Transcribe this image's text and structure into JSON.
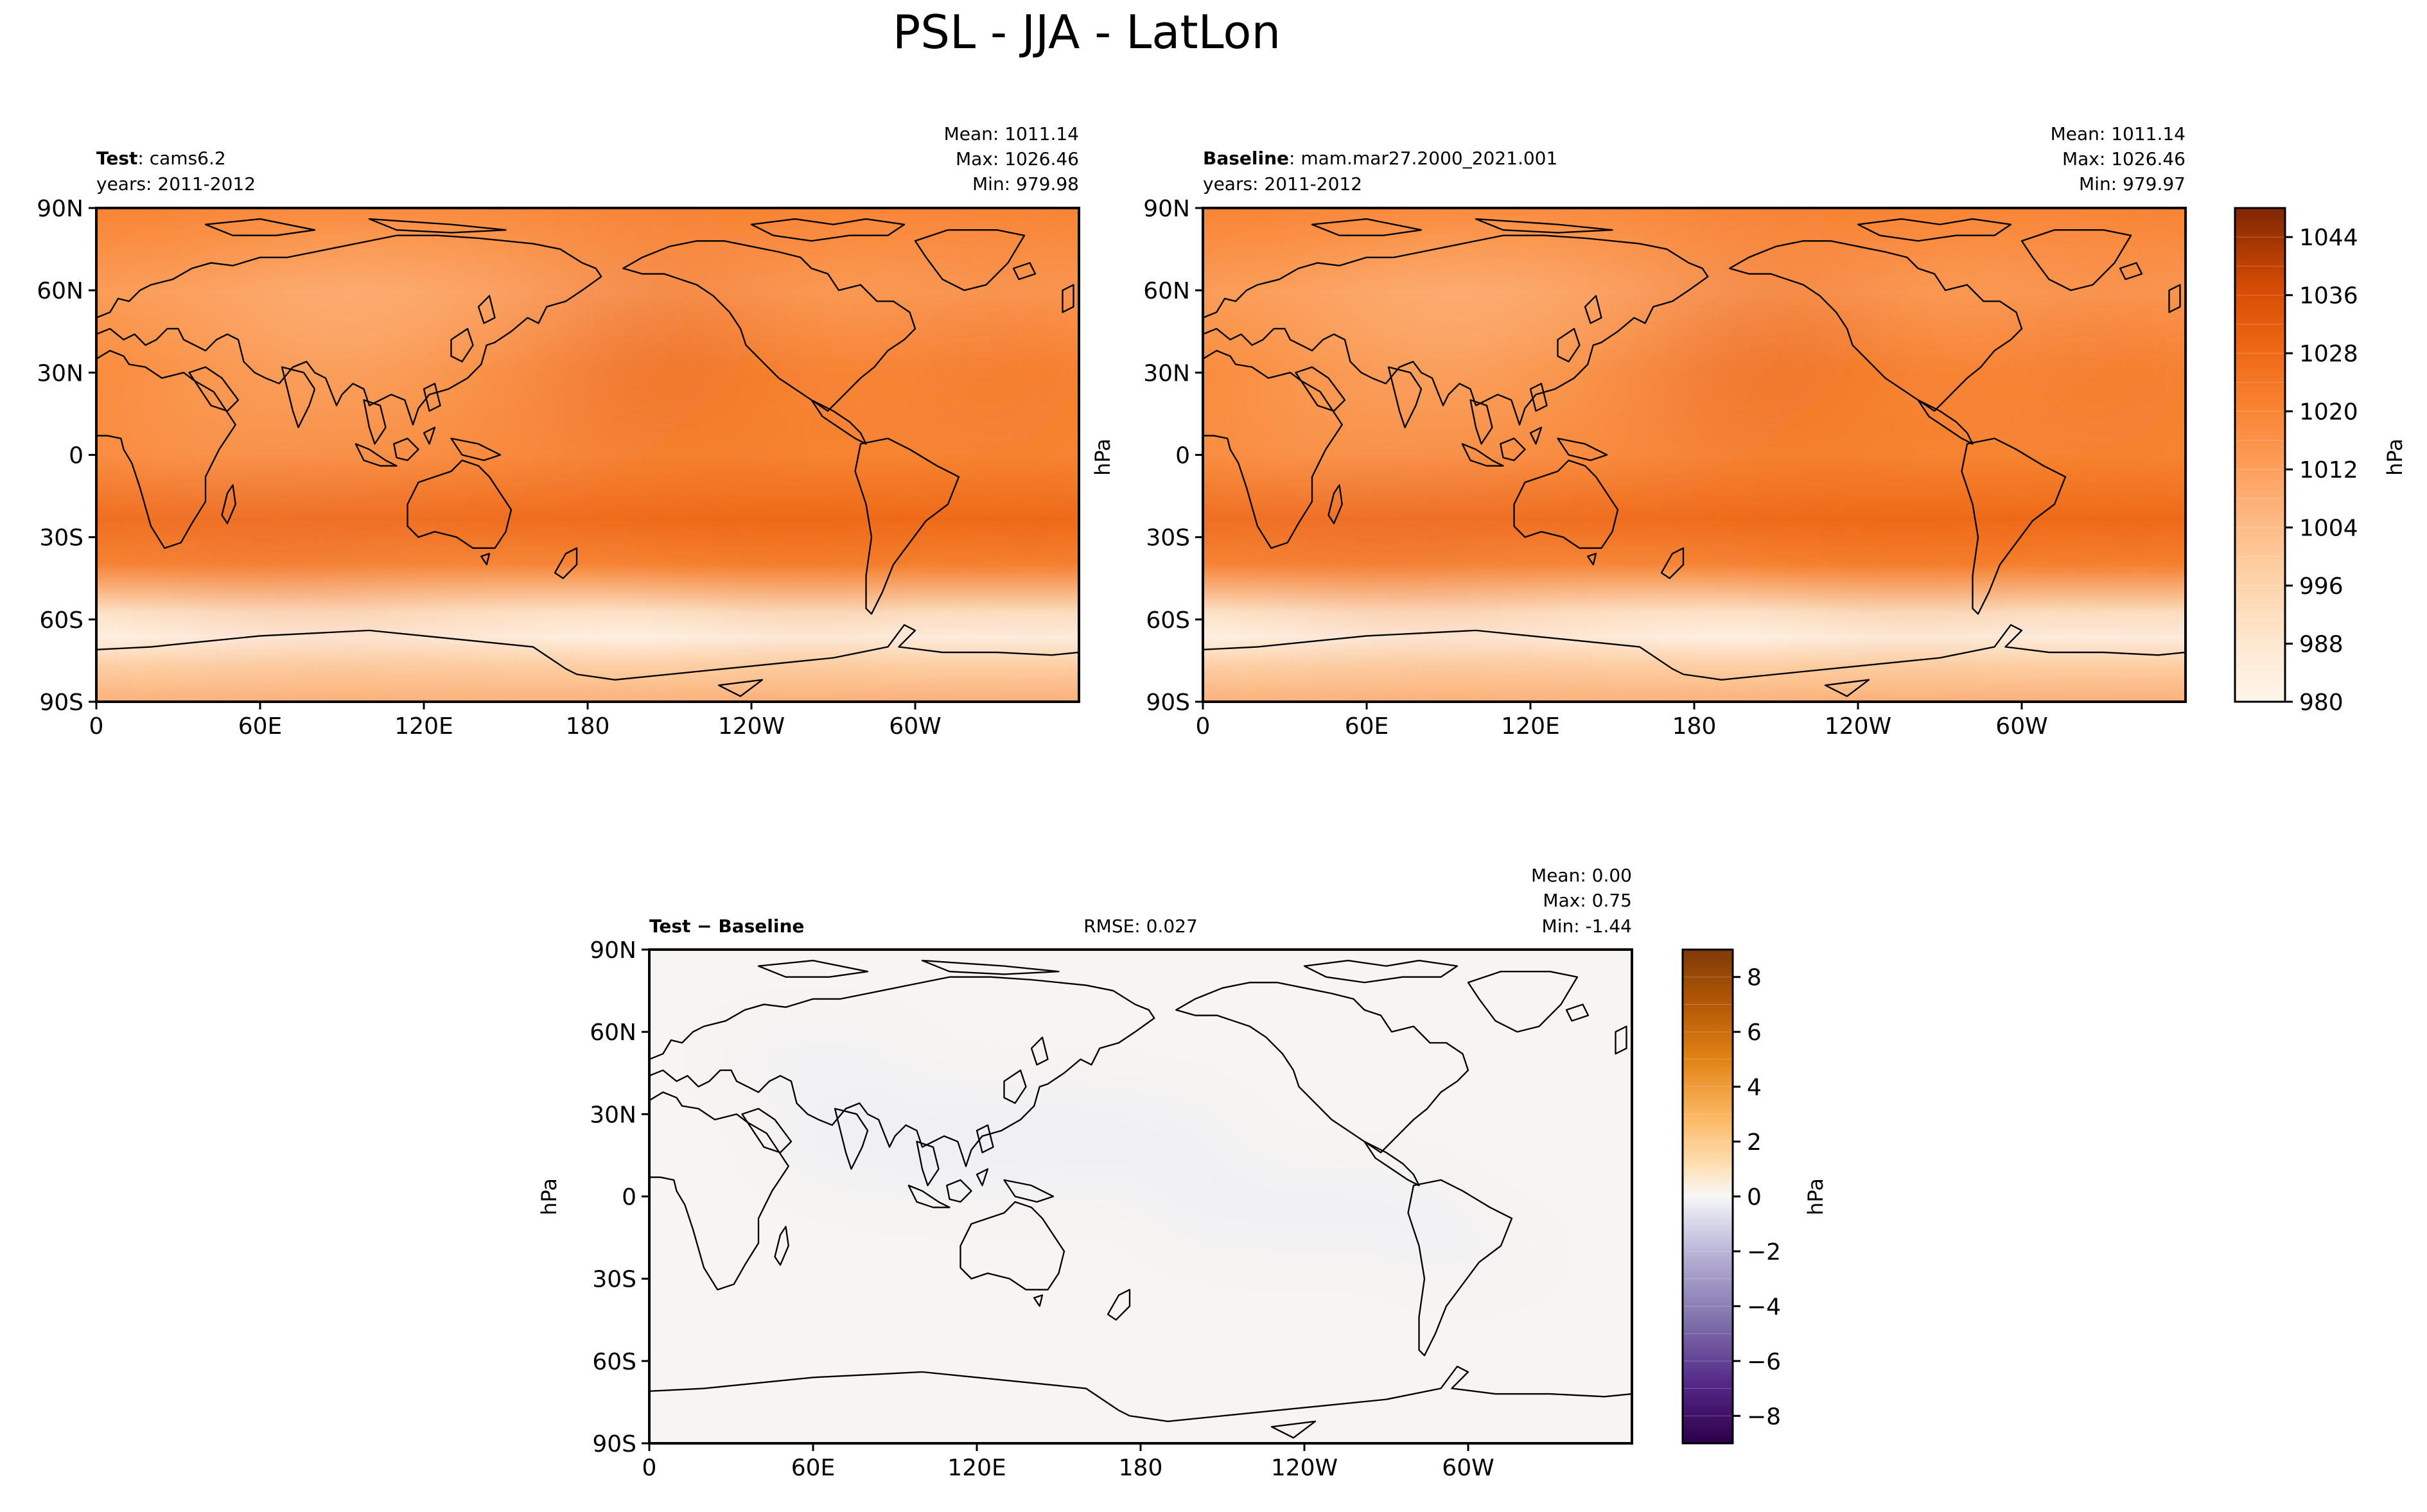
{
  "figure_title": "PSL - JJA - LatLon",
  "colors": {
    "orange_ramp": [
      "#fff5eb",
      "#fee7d0",
      "#fdd4ab",
      "#fdba85",
      "#fd9d58",
      "#f98231",
      "#ed6614",
      "#d64b04",
      "#a63603",
      "#7f2704"
    ],
    "purple_orange": [
      "#2d004b",
      "#542788",
      "#8073ac",
      "#b2abd2",
      "#d8daeb",
      "#f7f7f7",
      "#fee0b6",
      "#fdb863",
      "#e08214",
      "#b35806",
      "#7f3b08"
    ],
    "coast": "#000000"
  },
  "panels": {
    "test": {
      "label_bold": "Test",
      "label_rest": ": cams6.2",
      "years": "years: 2011-2012",
      "mean": "Mean: 1011.14",
      "max": "Max: 1026.46",
      "min": "Min: 979.98"
    },
    "baseline": {
      "label_bold": "Baseline",
      "label_rest": ": mam.mar27.2000_2021.001",
      "years": "years: 2011-2012",
      "mean": "Mean: 1011.14",
      "max": "Max: 1026.46",
      "min": "Min: 979.97"
    },
    "diff": {
      "label": "Test − Baseline",
      "rmse": "RMSE: 0.027",
      "mean": "Mean:  0.00",
      "max": "Max:  0.75",
      "min": "Min: -1.44"
    }
  },
  "unit_label": "hPa",
  "chart_data": [
    {
      "type": "heatmap",
      "name": "Test",
      "x_ticks": [
        "0",
        "60E",
        "120E",
        "180",
        "120W",
        "60W"
      ],
      "x_tick_values": [
        0,
        60,
        120,
        180,
        240,
        300
      ],
      "y_ticks": [
        "90N",
        "60N",
        "30N",
        "0",
        "30S",
        "60S",
        "90S"
      ],
      "y_tick_values": [
        90,
        60,
        30,
        0,
        -30,
        -60,
        -90
      ],
      "xlim": [
        0,
        360
      ],
      "ylim": [
        -90,
        90
      ],
      "stats": {
        "mean": 1011.14,
        "max": 1026.46,
        "min": 979.98
      }
    },
    {
      "type": "heatmap",
      "name": "Baseline",
      "x_ticks": [
        "0",
        "60E",
        "120E",
        "180",
        "120W",
        "60W"
      ],
      "x_tick_values": [
        0,
        60,
        120,
        180,
        240,
        300
      ],
      "y_ticks": [
        "90N",
        "60N",
        "30N",
        "0",
        "30S",
        "60S",
        "90S"
      ],
      "y_tick_values": [
        90,
        60,
        30,
        0,
        -30,
        -60,
        -90
      ],
      "xlim": [
        0,
        360
      ],
      "ylim": [
        -90,
        90
      ],
      "stats": {
        "mean": 1011.14,
        "max": 1026.46,
        "min": 979.97
      },
      "colorbar": {
        "label": "hPa",
        "range": [
          980,
          1048
        ],
        "ticks": [
          980,
          988,
          996,
          1004,
          1012,
          1020,
          1028,
          1036,
          1044
        ],
        "tick_labels": [
          "980",
          "988",
          "996",
          "1004",
          "1012",
          "1020",
          "1028",
          "1036",
          "1044"
        ]
      }
    },
    {
      "type": "heatmap",
      "name": "Test - Baseline",
      "x_ticks": [
        "0",
        "60E",
        "120E",
        "180",
        "120W",
        "60W"
      ],
      "x_tick_values": [
        0,
        60,
        120,
        180,
        240,
        300
      ],
      "y_ticks": [
        "90N",
        "60N",
        "30N",
        "0",
        "30S",
        "60S",
        "90S"
      ],
      "y_tick_values": [
        90,
        60,
        30,
        0,
        -30,
        -60,
        -90
      ],
      "xlim": [
        0,
        360
      ],
      "ylim": [
        -90,
        90
      ],
      "stats": {
        "mean": 0.0,
        "max": 0.75,
        "min": -1.44,
        "rmse": 0.027
      },
      "colorbar": {
        "label": "hPa",
        "range": [
          -9,
          9
        ],
        "ticks": [
          -8,
          -6,
          -4,
          -2,
          0,
          2,
          4,
          6,
          8
        ],
        "tick_labels": [
          "−8",
          "−6",
          "−4",
          "−2",
          "0",
          "2",
          "4",
          "6",
          "8"
        ]
      }
    }
  ]
}
